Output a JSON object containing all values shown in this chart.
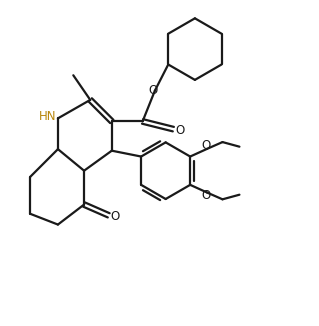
{
  "background_color": "#ffffff",
  "line_color": "#1a1a1a",
  "nh_color": "#b8860b",
  "line_width": 1.6,
  "figsize": [
    3.19,
    3.26
  ],
  "dpi": 100,
  "xlim": [
    0,
    10
  ],
  "ylim": [
    0,
    10.5
  ]
}
